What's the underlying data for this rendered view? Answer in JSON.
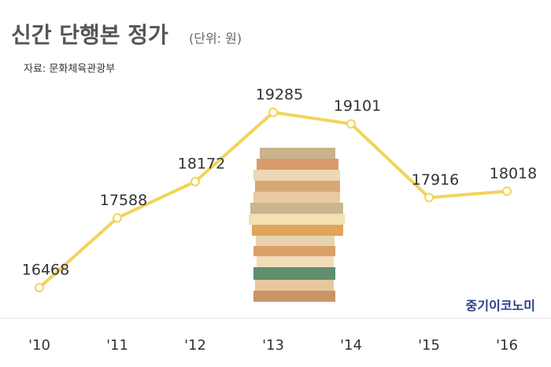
{
  "chart_data": {
    "type": "line",
    "title": "신간 단행본 정가",
    "subtitle": "(단위: 원)",
    "source": "자료: 문화체육관광부",
    "brand": "중기이코노미",
    "categories": [
      "'10",
      "'11",
      "'12",
      "'13",
      "'14",
      "'15",
      "'16"
    ],
    "values": [
      16468,
      17588,
      18172,
      19285,
      19101,
      17916,
      18018
    ],
    "color": "#f2d35a"
  }
}
